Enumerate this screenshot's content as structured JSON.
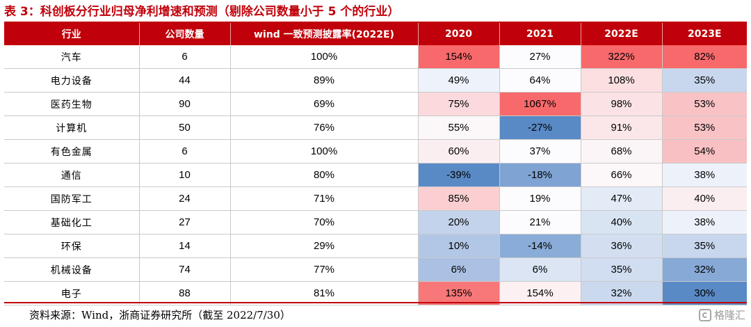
{
  "title": "表 3：科创板分行业归母净利增速和预测（剔除公司数量小于 5 个的行业）",
  "table": {
    "headers": [
      "行业",
      "公司数量",
      "wind 一致预测披露率(2022E)",
      "2020",
      "2021",
      "2022E",
      "2023E"
    ],
    "rows": [
      {
        "industry": "汽车",
        "count": "6",
        "disclosure": "100%",
        "y2020": "154%",
        "y2021": "27%",
        "y2022e": "322%",
        "y2023e": "82%",
        "colors": [
          "#f8696b",
          "#fcfcff",
          "#f8696b",
          "#f8696b"
        ]
      },
      {
        "industry": "电力设备",
        "count": "44",
        "disclosure": "89%",
        "y2020": "49%",
        "y2021": "64%",
        "y2022e": "108%",
        "y2023e": "35%",
        "colors": [
          "#eef3fb",
          "#fcfcff",
          "#fbdfe1",
          "#c8d7ee"
        ]
      },
      {
        "industry": "医药生物",
        "count": "90",
        "disclosure": "69%",
        "y2020": "75%",
        "y2021": "1067%",
        "y2022e": "98%",
        "y2023e": "53%",
        "colors": [
          "#fbd9dc",
          "#f8696b",
          "#fbe3e5",
          "#f9c3c6"
        ]
      },
      {
        "industry": "计算机",
        "count": "50",
        "disclosure": "76%",
        "y2020": "55%",
        "y2021": "-27%",
        "y2022e": "91%",
        "y2023e": "53%",
        "colors": [
          "#fcf7f9",
          "#5a8ac6",
          "#fbe7ea",
          "#f9c3c6"
        ]
      },
      {
        "industry": "有色金属",
        "count": "6",
        "disclosure": "100%",
        "y2020": "60%",
        "y2021": "37%",
        "y2022e": "68%",
        "y2023e": "54%",
        "colors": [
          "#fbeef1",
          "#fcfcff",
          "#fcf5f7",
          "#f9c0c3"
        ]
      },
      {
        "industry": "通信",
        "count": "10",
        "disclosure": "80%",
        "y2020": "-39%",
        "y2021": "-18%",
        "y2022e": "66%",
        "y2023e": "38%",
        "colors": [
          "#5a8ac6",
          "#7fa4d4",
          "#fcf7f9",
          "#edf2fa"
        ]
      },
      {
        "industry": "国防军工",
        "count": "24",
        "disclosure": "71%",
        "y2020": "85%",
        "y2021": "19%",
        "y2022e": "47%",
        "y2023e": "40%",
        "colors": [
          "#fbcfd2",
          "#fcfcff",
          "#e3ebf7",
          "#fbeef1"
        ]
      },
      {
        "industry": "基础化工",
        "count": "27",
        "disclosure": "70%",
        "y2020": "20%",
        "y2021": "21%",
        "y2022e": "40%",
        "y2023e": "38%",
        "colors": [
          "#c3d3ec",
          "#fcfcff",
          "#d9e4f3",
          "#edf2fa"
        ]
      },
      {
        "industry": "环保",
        "count": "14",
        "disclosure": "29%",
        "y2020": "10%",
        "y2021": "-14%",
        "y2022e": "36%",
        "y2023e": "35%",
        "colors": [
          "#b2c7e6",
          "#8aacd8",
          "#d3dff1",
          "#c8d7ee"
        ]
      },
      {
        "industry": "机械设备",
        "count": "74",
        "disclosure": "77%",
        "y2020": "6%",
        "y2021": "6%",
        "y2022e": "35%",
        "y2023e": "32%",
        "colors": [
          "#aac1e3",
          "#dbe5f4",
          "#d1ddf0",
          "#87a9d6"
        ]
      },
      {
        "industry": "电子",
        "count": "88",
        "disclosure": "81%",
        "y2020": "135%",
        "y2021": "154%",
        "y2022e": "32%",
        "y2023e": "30%",
        "colors": [
          "#f8787a",
          "#fcf0f2",
          "#cbd9ef",
          "#5a8ac6"
        ]
      }
    ]
  },
  "source": "资料来源：Wind，浙商证券研究所（截至 2022/7/30）",
  "watermark": "格隆汇"
}
